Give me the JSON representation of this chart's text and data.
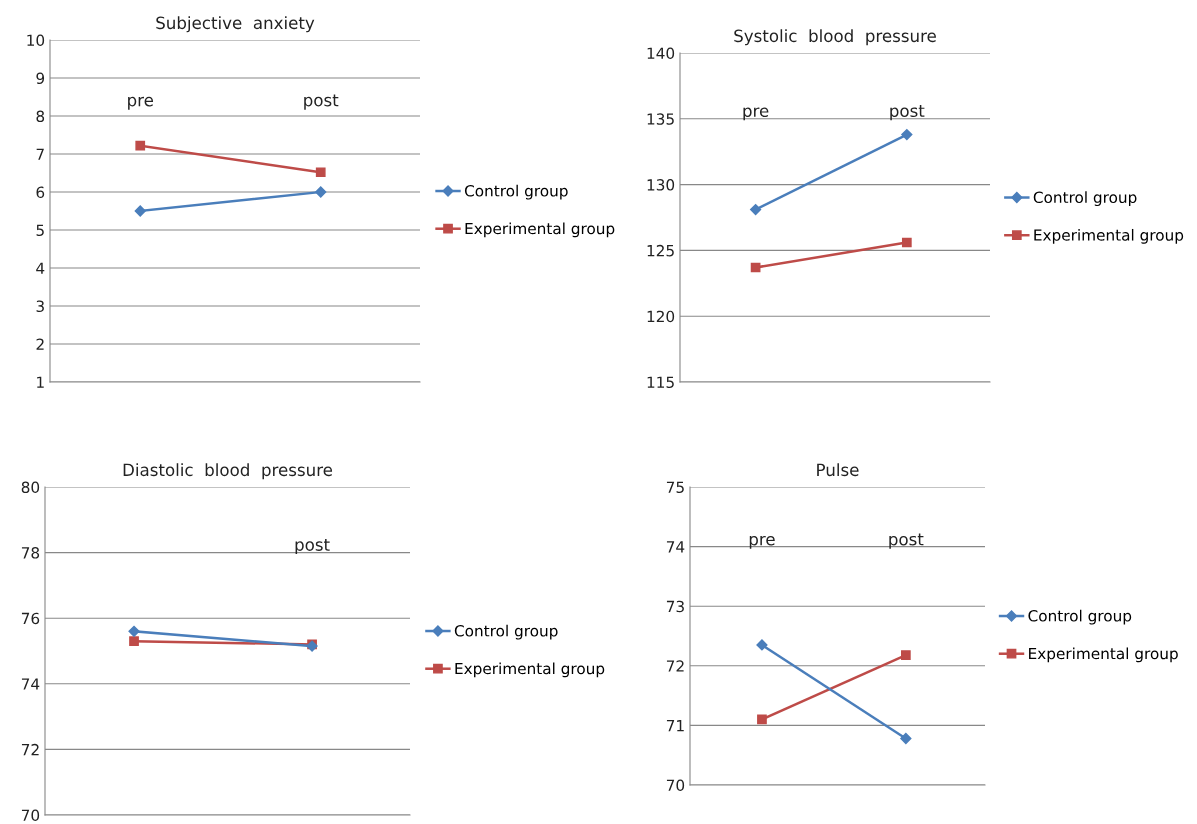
{
  "chart_data": [
    {
      "type": "line",
      "title": "Subjective  anxiety",
      "categories": [
        "pre",
        "post"
      ],
      "ylim": [
        1,
        10
      ],
      "yticks": [
        1,
        2,
        3,
        4,
        5,
        6,
        7,
        8,
        9,
        10
      ],
      "grid": "y",
      "legend": "right",
      "series": [
        {
          "name": "Control group",
          "color": "#4a7ebb",
          "marker": "diamond",
          "values": [
            5.5,
            6.0
          ]
        },
        {
          "name": "Experimental group",
          "color": "#be4b48",
          "marker": "square",
          "values": [
            7.22,
            6.52
          ]
        }
      ]
    },
    {
      "type": "line",
      "title": "Systolic  blood  pressure",
      "categories": [
        "pre",
        "post"
      ],
      "ylim": [
        115,
        140
      ],
      "yticks": [
        115,
        120,
        125,
        130,
        135,
        140
      ],
      "grid": "y",
      "legend": "right",
      "series": [
        {
          "name": "Control group",
          "color": "#4a7ebb",
          "marker": "diamond",
          "values": [
            128.1,
            133.8
          ]
        },
        {
          "name": "Experimental group",
          "color": "#be4b48",
          "marker": "square",
          "values": [
            123.7,
            125.6
          ]
        }
      ]
    },
    {
      "type": "line",
      "title": "Diastolic  blood  pressure",
      "categories": [
        null,
        "post"
      ],
      "ylim": [
        70,
        80
      ],
      "yticks": [
        70,
        72,
        74,
        76,
        78,
        80
      ],
      "grid": "y",
      "legend": "right",
      "series": [
        {
          "name": "Control group",
          "color": "#4a7ebb",
          "marker": "diamond",
          "values": [
            75.6,
            75.15
          ]
        },
        {
          "name": "Experimental group",
          "color": "#be4b48",
          "marker": "square",
          "values": [
            75.3,
            75.2
          ]
        }
      ]
    },
    {
      "type": "line",
      "title": "Pulse",
      "categories": [
        "pre",
        "post"
      ],
      "ylim": [
        70,
        75
      ],
      "yticks": [
        70,
        71,
        72,
        73,
        74,
        75
      ],
      "grid": "y",
      "legend": "right",
      "series": [
        {
          "name": "Control group",
          "color": "#4a7ebb",
          "marker": "diamond",
          "values": [
            72.35,
            70.78
          ]
        },
        {
          "name": "Experimental group",
          "color": "#be4b48",
          "marker": "square",
          "values": [
            71.1,
            72.18
          ]
        }
      ]
    }
  ]
}
